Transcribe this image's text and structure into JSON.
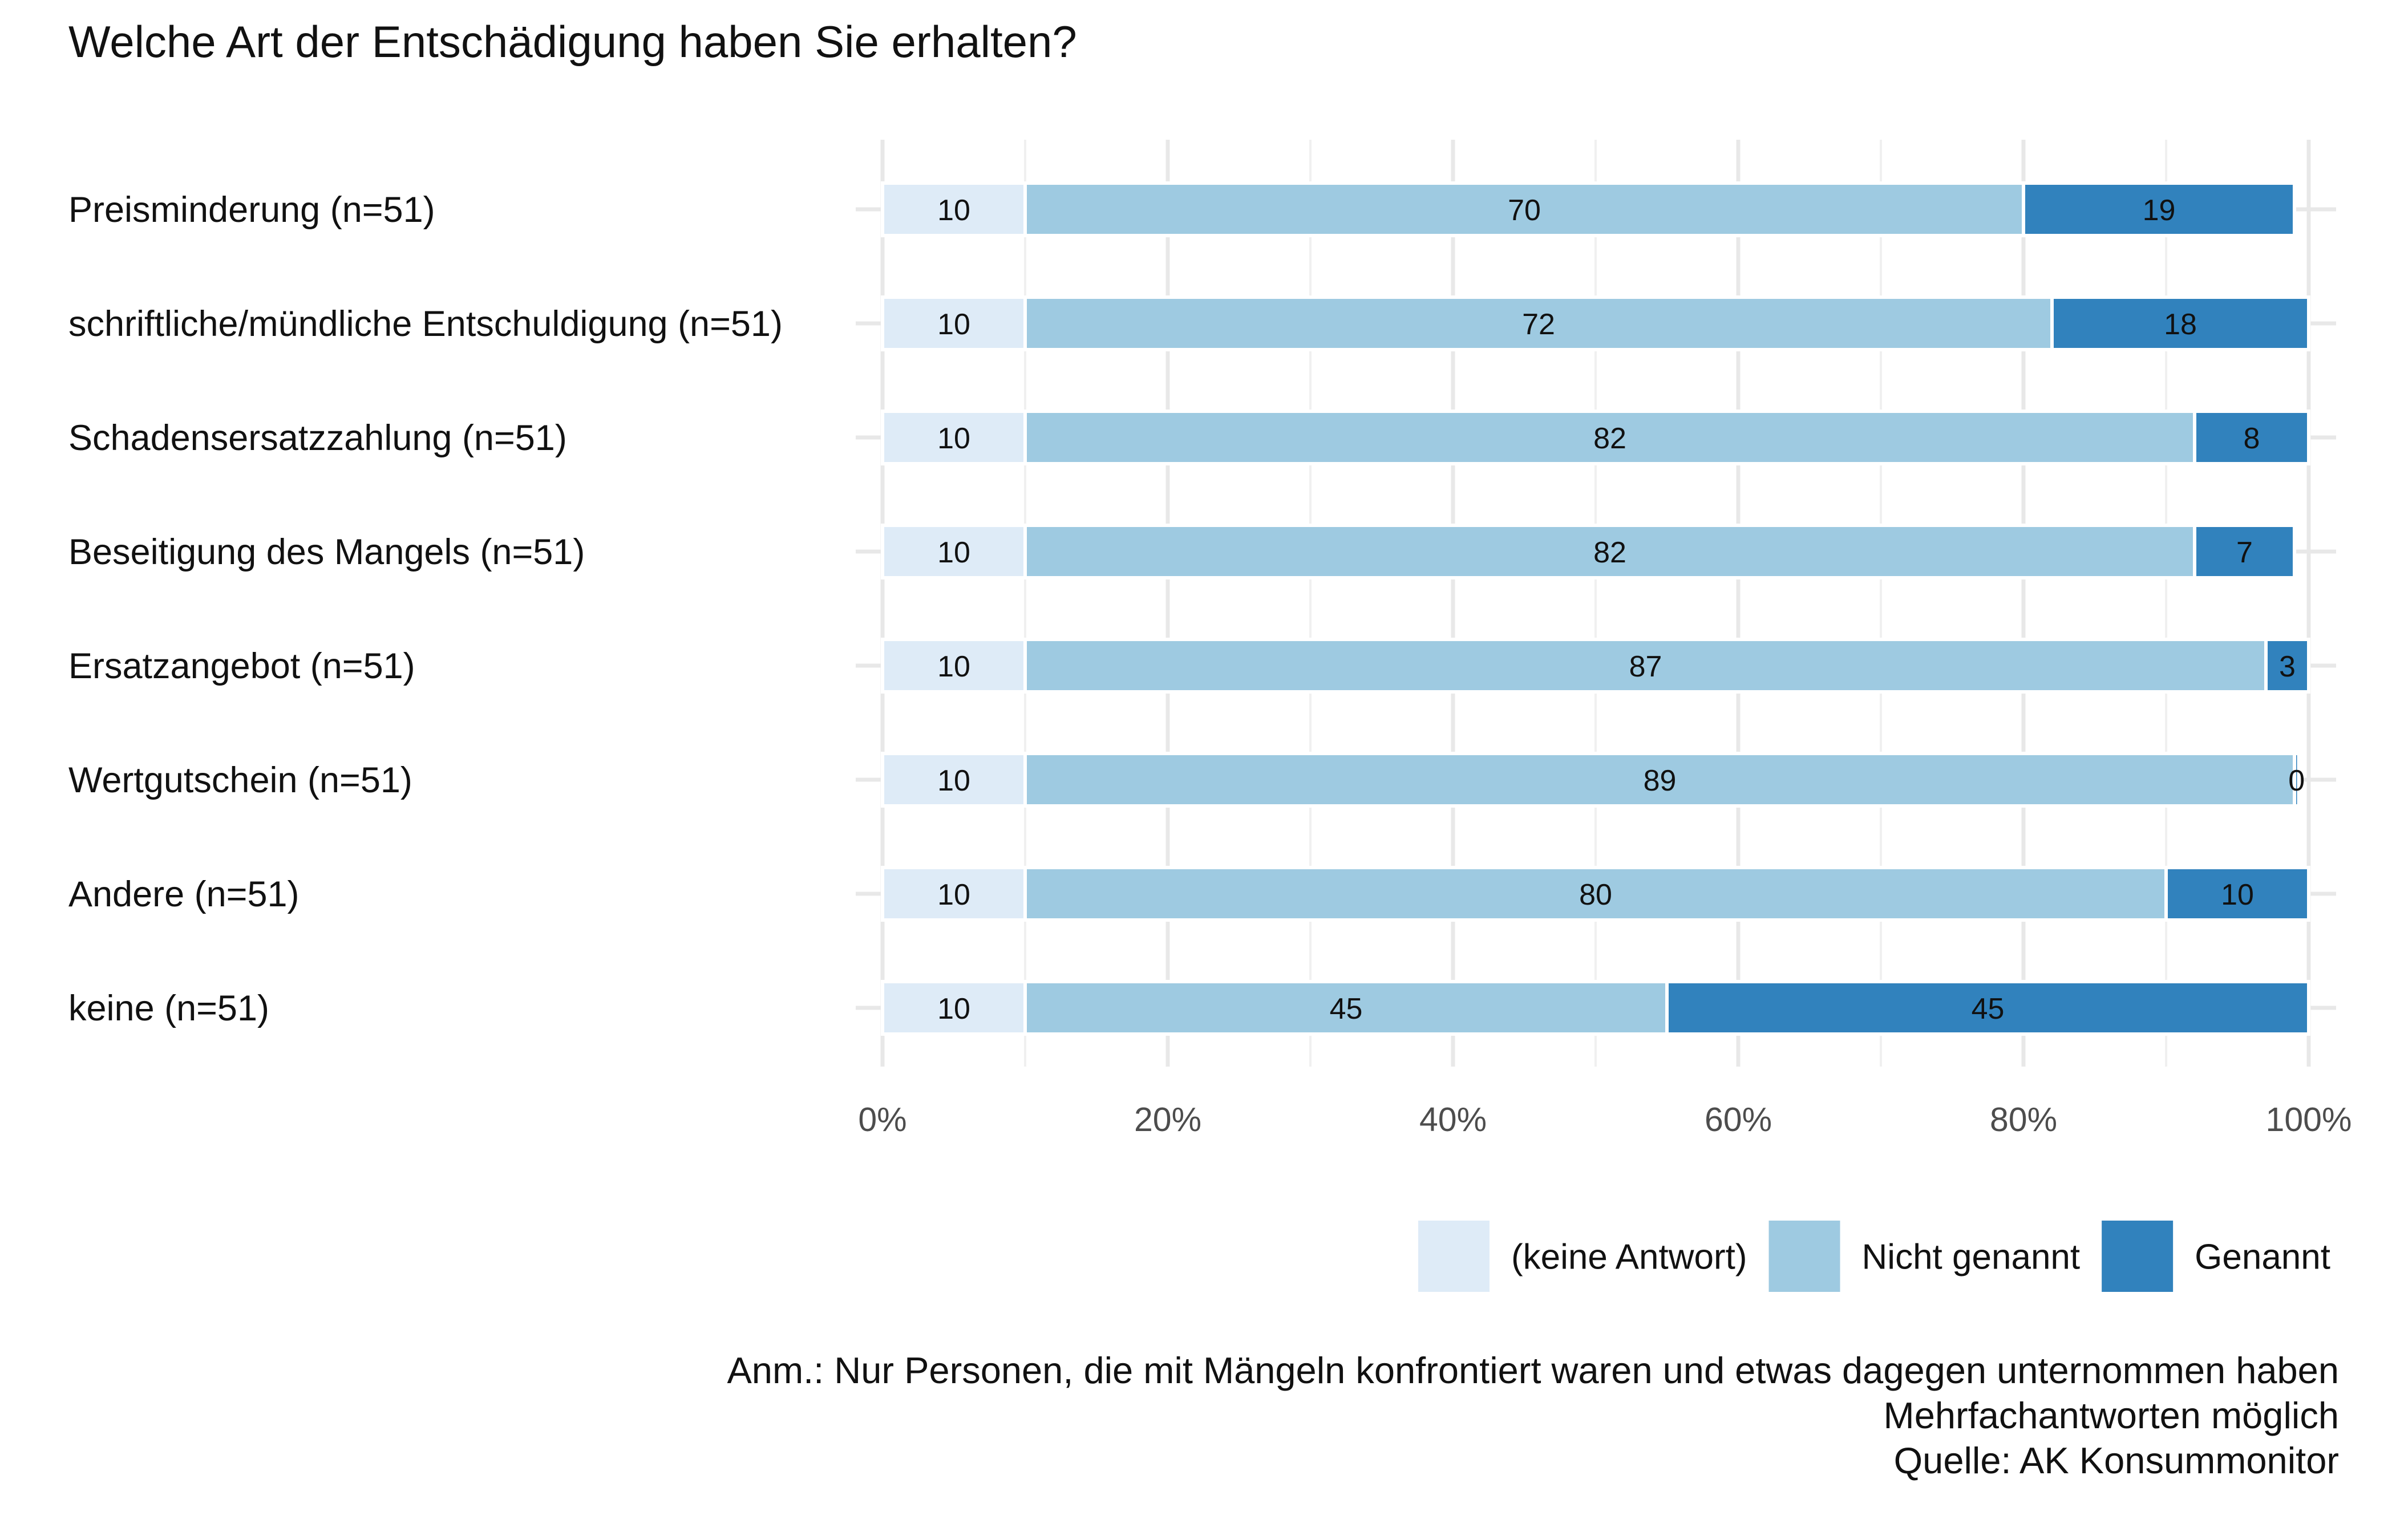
{
  "chart_data": {
    "type": "bar",
    "orientation": "horizontal",
    "stacked": true,
    "title": "Welche Art der Entschädigung haben Sie erhalten?",
    "categories": [
      "Preisminderung (n=51)",
      "schriftliche/mündliche Entschuldigung (n=51)",
      "Schadensersatzzahlung (n=51)",
      "Beseitigung des Mangels (n=51)",
      "Ersatzangebot (n=51)",
      "Wertgutschein (n=51)",
      "Andere (n=51)",
      "keine (n=51)"
    ],
    "series": [
      {
        "name": "(keine Antwort)",
        "color": "#deebf7",
        "values": [
          10,
          10,
          10,
          10,
          10,
          10,
          10,
          10
        ],
        "labels": [
          "10",
          "10",
          "10",
          "10",
          "10",
          "10",
          "10",
          "10"
        ]
      },
      {
        "name": "Nicht genannt",
        "color": "#9ecae1",
        "values": [
          70,
          72,
          82,
          82,
          87,
          89,
          80,
          45
        ],
        "labels": [
          "70",
          "72",
          "82",
          "82",
          "87",
          "89",
          "80",
          "45"
        ]
      },
      {
        "name": "Genannt",
        "color": "#3182bd",
        "values": [
          19,
          18,
          8,
          7,
          3,
          0.3,
          10,
          45
        ],
        "labels": [
          "19",
          "18",
          "8",
          "7",
          "3",
          "0",
          "10",
          "45"
        ]
      }
    ],
    "xlim": [
      0,
      100
    ],
    "xticks": [
      0,
      20,
      40,
      60,
      80,
      100
    ],
    "xtick_labels": [
      "0%",
      "20%",
      "40%",
      "60%",
      "80%",
      "100%"
    ],
    "xlabel": "",
    "ylabel": "",
    "grid": true,
    "legend": [
      "(keine Antwort)",
      "Nicht genannt",
      "Genannt"
    ],
    "legend_position": "bottom-right",
    "notes": [
      "Anm.: Nur Personen, die mit Mängeln konfrontiert waren und etwas dagegen unternommen haben",
      "Mehrfachantworten möglich",
      "Quelle: AK Konsummonitor"
    ]
  }
}
